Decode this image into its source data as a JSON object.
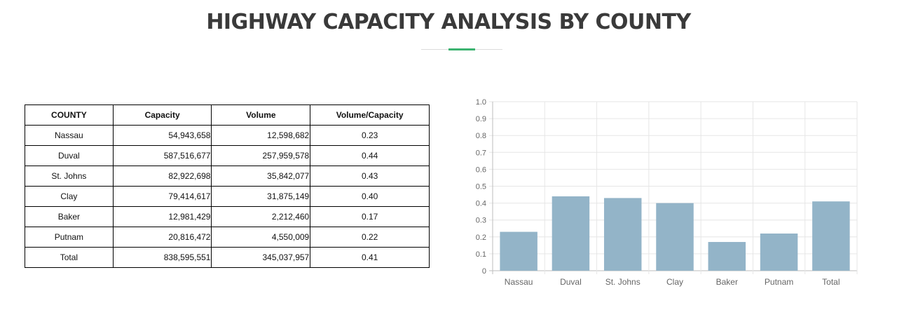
{
  "page": {
    "title": "HIGHWAY CAPACITY ANALYSIS BY COUNTY"
  },
  "table": {
    "headers": [
      "COUNTY",
      "Capacity",
      "Volume",
      "Volume/Capacity"
    ],
    "rows": [
      {
        "county": "Nassau",
        "capacity": "54,943,658",
        "volume": "12,598,682",
        "vc": "0.23"
      },
      {
        "county": "Duval",
        "capacity": "587,516,677",
        "volume": "257,959,578",
        "vc": "0.44"
      },
      {
        "county": "St. Johns",
        "capacity": "82,922,698",
        "volume": "35,842,077",
        "vc": "0.43"
      },
      {
        "county": "Clay",
        "capacity": "79,414,617",
        "volume": "31,875,149",
        "vc": "0.40"
      },
      {
        "county": "Baker",
        "capacity": "12,981,429",
        "volume": "2,212,460",
        "vc": "0.17"
      },
      {
        "county": "Putnam",
        "capacity": "20,816,472",
        "volume": "4,550,009",
        "vc": "0.22"
      },
      {
        "county": "Total",
        "capacity": "838,595,551",
        "volume": "345,037,957",
        "vc": "0.41"
      }
    ]
  },
  "colors": {
    "bar": "#93b4c8",
    "grid": "#e6e6e6",
    "accent": "#3cb371"
  },
  "chart_data": {
    "type": "bar",
    "categories": [
      "Nassau",
      "Duval",
      "St. Johns",
      "Clay",
      "Baker",
      "Putnam",
      "Total"
    ],
    "values": [
      0.23,
      0.44,
      0.43,
      0.4,
      0.17,
      0.22,
      0.41
    ],
    "ylim": [
      0,
      1.0
    ],
    "yticks": [
      "0",
      "0.1",
      "0.2",
      "0.3",
      "0.4",
      "0.5",
      "0.6",
      "0.7",
      "0.8",
      "0.9",
      "1.0"
    ],
    "grid": true,
    "title": "",
    "xlabel": "",
    "ylabel": ""
  }
}
